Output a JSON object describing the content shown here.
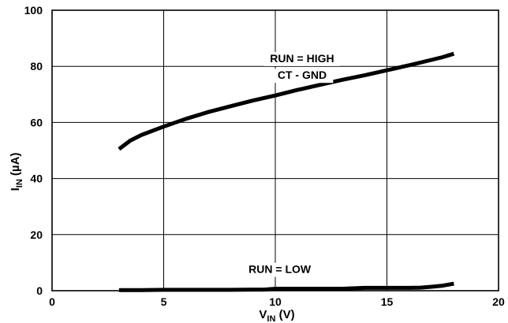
{
  "chart_data": {
    "type": "line",
    "xlabel": {
      "main": "V",
      "sub": "IN",
      "unit": " (V)"
    },
    "ylabel": {
      "main": "I",
      "sub": "IN",
      "unit": " (µA)"
    },
    "xlim": [
      0,
      20
    ],
    "ylim": [
      0,
      100
    ],
    "x_ticks": [
      0,
      5,
      10,
      15,
      20
    ],
    "y_ticks": [
      0,
      20,
      40,
      60,
      80,
      100
    ],
    "grid": true,
    "series": [
      {
        "x": [
          3.0,
          3.5,
          4.0,
          5.0,
          6.0,
          7.0,
          8.0,
          9.0,
          10.0,
          11.0,
          12.0,
          13.0,
          14.0,
          15.0,
          16.0,
          17.0,
          17.5,
          18.0
        ],
        "y": [
          50.5,
          53.5,
          55.5,
          58.5,
          61.3,
          63.7,
          65.8,
          67.8,
          69.6,
          71.6,
          73.4,
          75.2,
          76.8,
          78.6,
          80.4,
          82.3,
          83.3,
          84.5
        ]
      },
      {
        "x": [
          3.0,
          4.0,
          5.0,
          6.0,
          7.0,
          8.0,
          9.0,
          9.5,
          10.0,
          11.0,
          12.0,
          13.0,
          14.0,
          15.0,
          16.0,
          16.5,
          17.0,
          17.5,
          18.0
        ],
        "y": [
          0.2,
          0.2,
          0.3,
          0.3,
          0.3,
          0.3,
          0.4,
          0.4,
          0.7,
          0.7,
          0.7,
          0.7,
          1.0,
          1.0,
          1.0,
          1.1,
          1.4,
          1.8,
          2.5
        ]
      }
    ],
    "annotations": [
      {
        "text": "RUN = HIGH",
        "x": 11.2,
        "y": 81.5
      },
      {
        "text": "CT - GND",
        "x": 11.2,
        "y": 75.5
      },
      {
        "text": "RUN = LOW",
        "x": 10.2,
        "y": 6.3
      }
    ]
  }
}
